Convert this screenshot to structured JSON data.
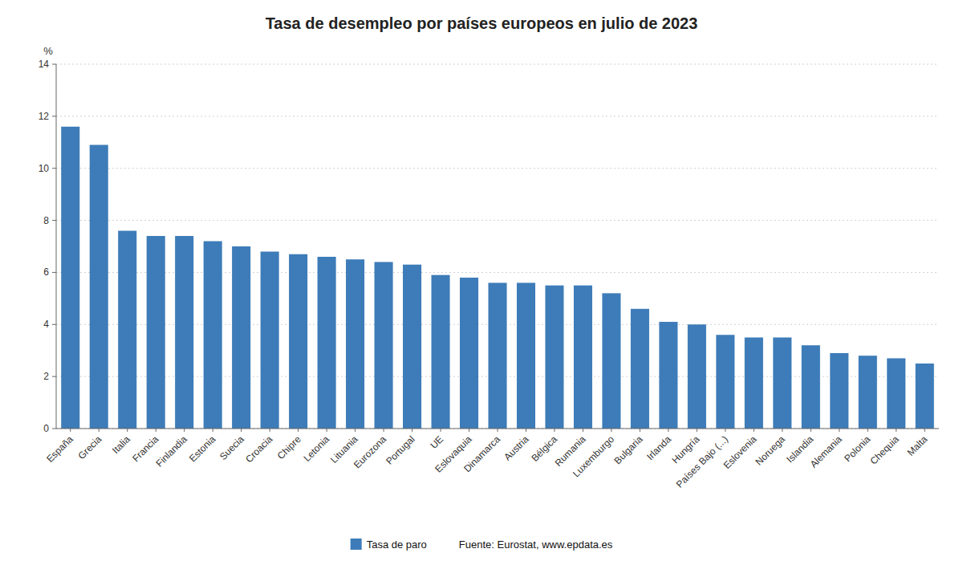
{
  "chart_data": {
    "type": "bar",
    "title": "Tasa de desempleo por países europeos en julio de 2023",
    "y_label": "%",
    "categories": [
      "España",
      "Grecia",
      "Italia",
      "Francia",
      "Finlandia",
      "Estonia",
      "Suecia",
      "Croacia",
      "Chipre",
      "Letonia",
      "Lituania",
      "Eurozona",
      "Portugal",
      "UE",
      "Eslovaquia",
      "Dinamarca",
      "Austria",
      "Bélgica",
      "Rumania",
      "Luxemburgo",
      "Bulgaria",
      "Irlanda",
      "Hungría",
      "Países Bajo (...)",
      "Eslovenia",
      "Noruega",
      "Islandia",
      "Alemania",
      "Polonia",
      "Chequia",
      "Malta"
    ],
    "series": [
      {
        "name": "Tasa de paro",
        "color": "#3d7cb8",
        "values": [
          11.6,
          10.9,
          7.6,
          7.4,
          7.4,
          7.2,
          7.0,
          6.8,
          6.7,
          6.6,
          6.5,
          6.4,
          6.3,
          5.9,
          5.8,
          5.6,
          5.6,
          5.5,
          5.5,
          5.2,
          4.6,
          4.1,
          4.0,
          3.6,
          3.5,
          3.5,
          3.2,
          2.9,
          2.8,
          2.7,
          2.5
        ]
      }
    ],
    "ylim": [
      0,
      14
    ],
    "yticks": [
      0,
      2,
      4,
      6,
      8,
      10,
      12,
      14
    ],
    "grid": true,
    "legend": "bottom",
    "annotations": [
      "Fuente: Eurostat, www.epdata.es"
    ]
  }
}
